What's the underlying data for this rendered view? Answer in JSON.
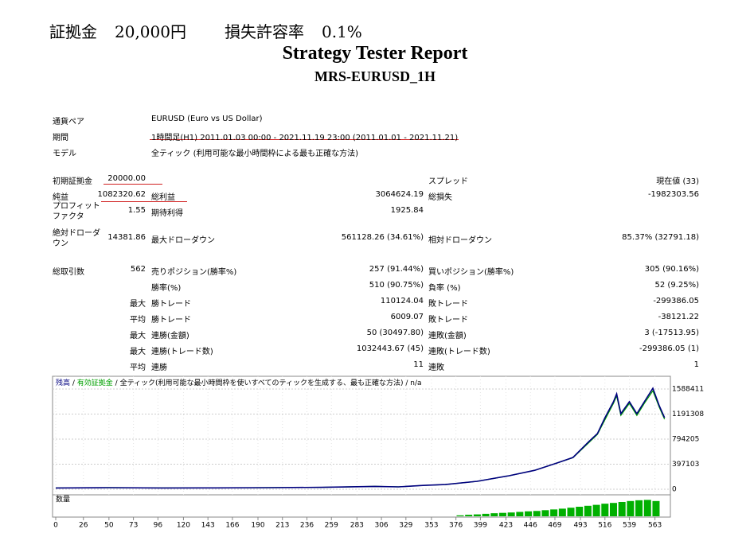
{
  "header": {
    "margin_label": "証拠金",
    "margin": "20,000円",
    "risk_label": "損失許容率",
    "risk": "0.1%"
  },
  "title": "Strategy Tester Report",
  "subtitle": "MRS-EURUSD_1H",
  "info": [
    [
      "通貨ペア",
      "EURUSD (Euro vs US Dollar)"
    ],
    [
      "期間",
      "1時間足(H1) 2011.01.03 00:00 - 2021.11.19 23:00 (2011.01.01 - 2021.11.21)"
    ],
    [
      "モデル",
      "全ティック (利用可能な最小時間枠による最も正確な方法)"
    ]
  ],
  "stats": [
    [
      "初期証拠金",
      "20000.00",
      null,
      null,
      "スプレッド",
      "現在値 (33)"
    ],
    [
      "純益",
      "1082320.62",
      "総利益",
      "3064624.19",
      "総損失",
      "-1982303.56"
    ],
    [
      "プロフィットファクタ",
      "1.55",
      "期待利得",
      "1925.84",
      null,
      null
    ],
    [
      "絶対ドローダウン",
      "14381.86",
      "最大ドローダウン",
      "561128.26 (34.61%)",
      "相対ドローダウン",
      "85.37% (32791.18)"
    ],
    [
      "総取引数",
      "562",
      "売りポジション(勝率%)",
      "257 (91.44%)",
      "買いポジション(勝率%)",
      "305 (90.16%)"
    ],
    [
      null,
      null,
      "勝率(%)",
      "510 (90.75%)",
      "負率 (%)",
      "52 (9.25%)"
    ],
    [
      null,
      "最大",
      "勝トレード",
      "110124.04",
      "敗トレード",
      "-299386.05"
    ],
    [
      null,
      "平均",
      "勝トレード",
      "6009.07",
      "敗トレード",
      "-38121.22"
    ],
    [
      null,
      "最大",
      "連勝(金額)",
      "50 (30497.80)",
      "連敗(金額)",
      "3 (-17513.95)"
    ],
    [
      null,
      "最大",
      "連勝(トレード数)",
      "1032443.67 (45)",
      "連敗(トレード数)",
      "-299386.05 (1)"
    ],
    [
      null,
      "平均",
      "連勝",
      "11",
      "連敗",
      "1"
    ]
  ],
  "chart_data": {
    "type": "line",
    "legend": [
      "残高",
      "有効証拠金",
      "全ティック(利用可能な最小時間枠を使いすべてのティックを生成する、最も正確な方法)",
      "n/a"
    ],
    "x": [
      0,
      50,
      100,
      150,
      200,
      250,
      300,
      322,
      345,
      366,
      396,
      426,
      450,
      471,
      486,
      501,
      509,
      516,
      524,
      527,
      531,
      539,
      546,
      553,
      561,
      567,
      572
    ],
    "series": [
      {
        "name": "残高",
        "color": "#00007f",
        "values": [
          20000,
          25000,
          20000,
          22000,
          25000,
          30000,
          45000,
          38000,
          60000,
          75000,
          126000,
          214000,
          300000,
          416000,
          504000,
          756000,
          882000,
          1134000,
          1387000,
          1512000,
          1198000,
          1387000,
          1198000,
          1387000,
          1600000,
          1324000,
          1134000
        ]
      },
      {
        "name": "有効証拠金",
        "color": "#00a000",
        "values": [
          20000,
          25000,
          20000,
          22000,
          25000,
          30000,
          45000,
          38000,
          60000,
          75000,
          126000,
          214000,
          300000,
          416000,
          500000,
          740000,
          870000,
          1100000,
          1360000,
          1480000,
          1170000,
          1360000,
          1170000,
          1360000,
          1560000,
          1300000,
          1110000
        ]
      }
    ],
    "xlim": [
      -1.5,
      574.5
    ],
    "ylim": [
      0,
      1765000
    ],
    "xticks": [
      0,
      26,
      50,
      73,
      96,
      120,
      143,
      166,
      190,
      213,
      236,
      259,
      283,
      306,
      329,
      353,
      376,
      399,
      423,
      446,
      469,
      493,
      516,
      539,
      563
    ],
    "yticks": [
      0,
      397103,
      794205,
      1191308,
      1588411
    ],
    "grid": true,
    "volume": {
      "label": "数量",
      "color": "#00b000",
      "ylim": [
        0,
        10
      ],
      "x": [
        380,
        388,
        396,
        404,
        412,
        420,
        428,
        436,
        444,
        452,
        460,
        468,
        476,
        484,
        492,
        500,
        508,
        516,
        524,
        532,
        540,
        548,
        556,
        564
      ],
      "values": [
        0.5,
        0.8,
        1,
        1.3,
        1.6,
        1.8,
        2,
        2.3,
        2.6,
        2.8,
        3.2,
        3.6,
        4,
        4.5,
        5,
        5.5,
        6,
        6.6,
        7,
        7.5,
        8,
        8.4,
        8.6,
        8
      ]
    }
  }
}
